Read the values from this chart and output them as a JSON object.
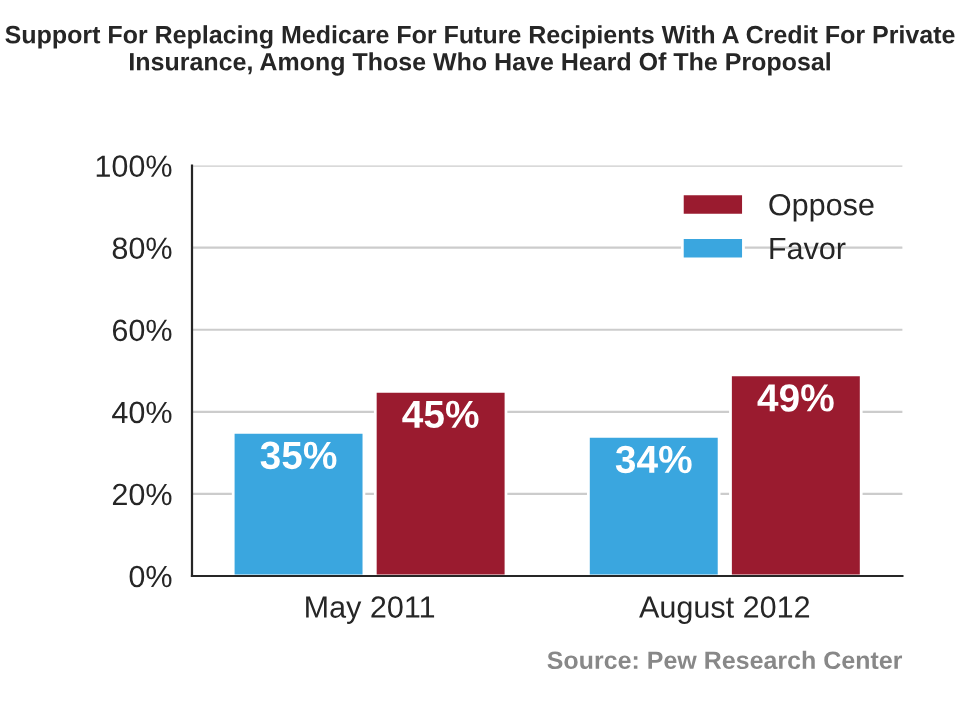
{
  "chart_data": {
    "type": "bar",
    "title": "Support For Replacing Medicare For Future Recipients With A Credit For Private Insurance, Among Those Who Have Heard Of The Proposal",
    "categories": [
      "May 2011",
      "August 2012"
    ],
    "series": [
      {
        "name": "Favor",
        "color": "#3aa6df",
        "values": [
          35,
          34
        ],
        "value_labels": [
          "35%",
          "34%"
        ]
      },
      {
        "name": "Oppose",
        "color": "#9a1b2f",
        "values": [
          45,
          49
        ],
        "value_labels": [
          "45%",
          "49%"
        ]
      }
    ],
    "ylim": [
      0,
      100
    ],
    "yticks": [
      {
        "value": 0,
        "label": "0%"
      },
      {
        "value": 20,
        "label": "20%"
      },
      {
        "value": 40,
        "label": "40%"
      },
      {
        "value": 60,
        "label": "60%"
      },
      {
        "value": 80,
        "label": "80%"
      },
      {
        "value": 100,
        "label": "100%"
      }
    ],
    "grid": "y",
    "legend": "top right",
    "annotations": [
      "Source: Pew Research Center"
    ]
  }
}
